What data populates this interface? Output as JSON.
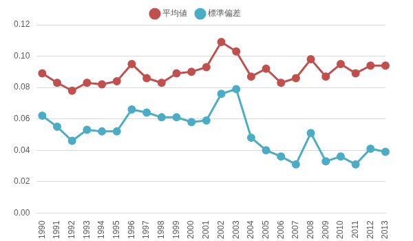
{
  "chart_data": {
    "type": "line",
    "categories": [
      "1990",
      "1991",
      "1992",
      "1993",
      "1994",
      "1995",
      "1996",
      "1997",
      "1998",
      "1999",
      "2000",
      "2001",
      "2002",
      "2003",
      "2004",
      "2005",
      "2006",
      "2007",
      "2008",
      "2009",
      "2010",
      "2011",
      "2012",
      "2013"
    ],
    "series": [
      {
        "name": "平均値",
        "color": "#c0504d",
        "marker": "circle",
        "values": [
          0.089,
          0.083,
          0.078,
          0.083,
          0.082,
          0.084,
          0.095,
          0.086,
          0.083,
          0.089,
          0.09,
          0.093,
          0.109,
          0.103,
          0.087,
          0.092,
          0.083,
          0.086,
          0.098,
          0.087,
          0.095,
          0.089,
          0.094,
          0.094
        ]
      },
      {
        "name": "標準偏差",
        "color": "#4bacc6",
        "marker": "circle",
        "values": [
          0.062,
          0.055,
          0.046,
          0.053,
          0.052,
          0.052,
          0.066,
          0.064,
          0.061,
          0.061,
          0.058,
          0.059,
          0.076,
          0.079,
          0.048,
          0.04,
          0.036,
          0.031,
          0.051,
          0.033,
          0.036,
          0.031,
          0.041,
          0.039
        ]
      }
    ],
    "ylim": [
      0,
      0.12
    ],
    "yticks": [
      {
        "value": 0,
        "label": "0.00"
      },
      {
        "value": 0.02,
        "label": "0.02"
      },
      {
        "value": 0.04,
        "label": "0.04"
      },
      {
        "value": 0.06,
        "label": "0.06"
      },
      {
        "value": 0.08,
        "label": "0.08"
      },
      {
        "value": 0.1,
        "label": "0.10"
      },
      {
        "value": 0.12,
        "label": "0.12"
      }
    ],
    "grid": true,
    "legend": "top"
  }
}
